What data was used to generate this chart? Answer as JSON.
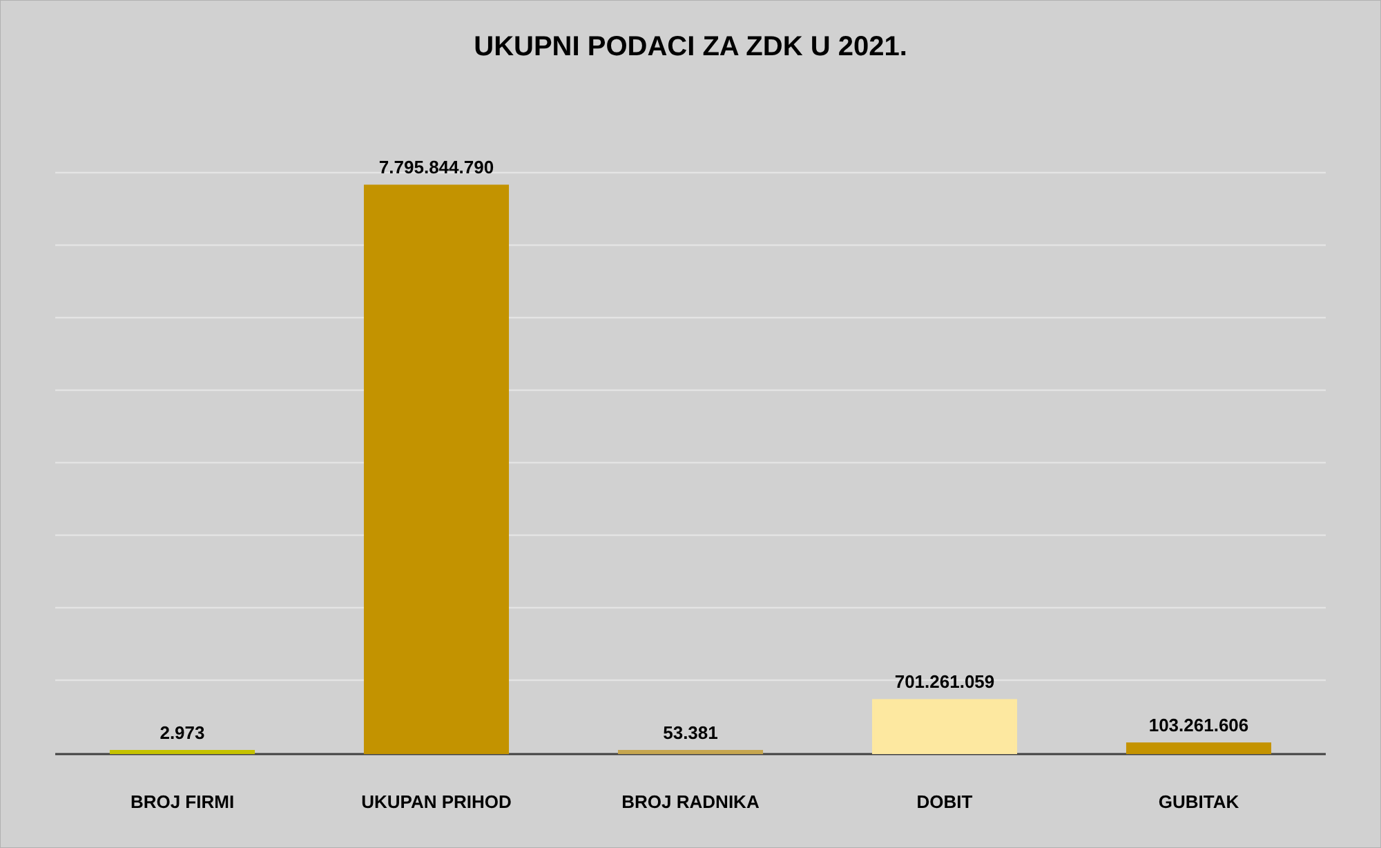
{
  "chart_data": {
    "type": "bar",
    "title": "UKUPNI PODACI ZA ZDK U 2021.",
    "categories": [
      "BROJ FIRMI",
      "UKUPAN PRIHOD",
      "BROJ RADNIKA",
      "DOBIT",
      "GUBITAK"
    ],
    "values": [
      2973,
      7795844790,
      53381,
      701261059,
      103261606
    ],
    "value_labels": [
      "2.973",
      "7.795.844.790",
      "53.381",
      "701.261.059",
      "103.261.606"
    ],
    "colors": [
      "#c5c200",
      "#c39300",
      "#c6a64f",
      "#fde8a0",
      "#c49300"
    ],
    "ylim": [
      0,
      8000000000
    ],
    "yticks": [
      {
        "value": 1000000000,
        "label": null
      },
      {
        "value": 2000000000,
        "label": null
      },
      {
        "value": 3000000000,
        "label": null
      },
      {
        "value": 4000000000,
        "label": null
      },
      {
        "value": 5000000000,
        "label": null
      },
      {
        "value": 6000000000,
        "label": null
      },
      {
        "value": 7000000000,
        "label": null
      },
      {
        "value": 8000000000,
        "label": null
      }
    ],
    "grid": "y",
    "tick_labels": "x"
  }
}
